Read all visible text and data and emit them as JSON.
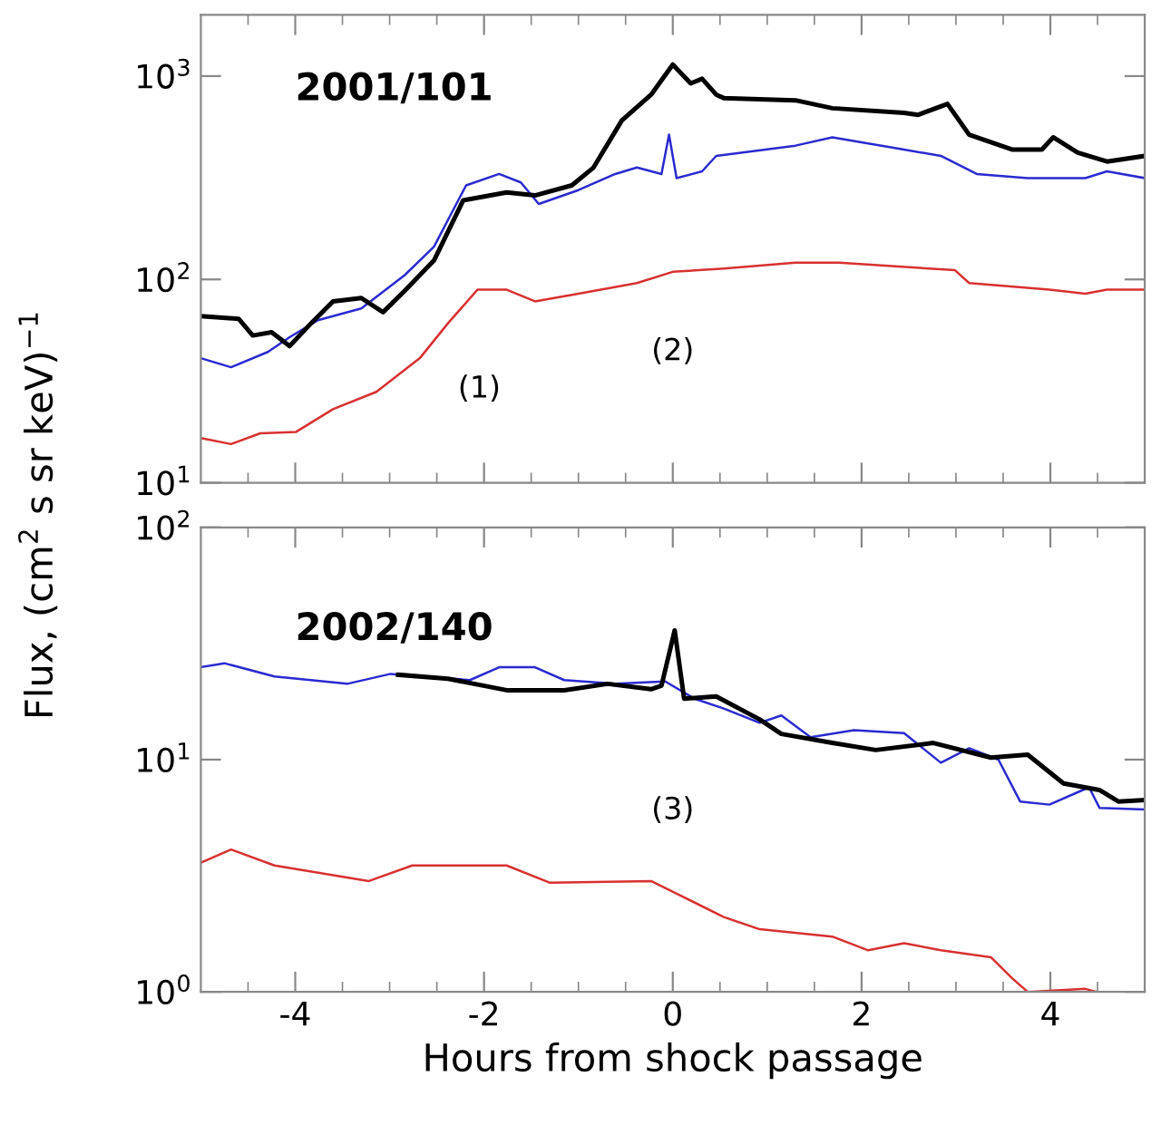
{
  "chart_data": [
    {
      "type": "line",
      "title": "2001/101",
      "ylabel": "Flux, (cm$^{2}$ s sr keV)$^{−1}$",
      "log": "y",
      "grid": false,
      "tick_labels": "y",
      "line_style": "solid",
      "marker": "none",
      "xlim": [
        -5,
        5
      ],
      "ylim": [
        10,
        2000
      ],
      "xticks": [
        -4,
        -2,
        0,
        2,
        4,
        {
          "value": -4.5,
          "label": null
        },
        {
          "value": -3.5,
          "label": null
        },
        {
          "value": -3,
          "label": null
        },
        {
          "value": -2.5,
          "label": null
        },
        {
          "value": -1.5,
          "label": null
        },
        {
          "value": -1,
          "label": null
        },
        {
          "value": -0.5,
          "label": null
        },
        {
          "value": 0.5,
          "label": null
        },
        {
          "value": 1,
          "label": null
        },
        {
          "value": 1.5,
          "label": null
        },
        {
          "value": 2.5,
          "label": null
        },
        {
          "value": 3,
          "label": null
        },
        {
          "value": 3.5,
          "label": null
        },
        {
          "value": 4.5,
          "label": null
        }
      ],
      "yticks": [
        {
          "value": 10,
          "label": "10$^{1}$"
        },
        {
          "value": 100,
          "label": "10$^{2}$"
        },
        {
          "value": 1000,
          "label": "10$^{3}$"
        }
      ],
      "annotations": [
        "(1)",
        "(2)"
      ],
      "series": [
        {
          "color": "#2a2ad0",
          "x": [
            -5,
            -4.68,
            -4.29,
            -4.06,
            -3.76,
            -3.3,
            -2.84,
            -2.53,
            -2.19,
            -1.84,
            -1.61,
            -1.42,
            -1.0,
            -0.61,
            -0.38,
            -0.12,
            -0.04,
            0.04,
            0.31,
            0.46,
            1.3,
            1.69,
            2.45,
            2.84,
            3.22,
            3.76,
            4.37,
            4.6,
            5
          ],
          "values": [
            41,
            37,
            44,
            52,
            63,
            72,
            105,
            145,
            290,
            330,
            300,
            235,
            275,
            330,
            355,
            330,
            515,
            315,
            340,
            405,
            455,
            500,
            435,
            405,
            330,
            315,
            315,
            340,
            315
          ]
        },
        {
          "color": "#d83030",
          "x": [
            -5,
            -4.68,
            -4.37,
            -3.99,
            -3.6,
            -3.14,
            -2.68,
            -2.38,
            -2.07,
            -1.76,
            -1.46,
            -1.0,
            -0.38,
            0,
            0.54,
            1.3,
            1.76,
            2.99,
            3.14,
            3.99,
            4.37,
            4.6,
            5
          ],
          "values": [
            16.6,
            15.5,
            17.5,
            17.8,
            23,
            28,
            41,
            61,
            89,
            89,
            78,
            85,
            96,
            109,
            113,
            121,
            121,
            111,
            96,
            89,
            85,
            89,
            89
          ]
        },
        {
          "color": "#000000",
          "x": [
            -5,
            -4.6,
            -4.45,
            -4.25,
            -4.06,
            -3.83,
            -3.6,
            -3.3,
            -3.07,
            -2.84,
            -2.53,
            -2.22,
            -1.76,
            -1.46,
            -1.07,
            -0.84,
            -0.54,
            -0.23,
            0,
            0.19,
            0.31,
            0.46,
            0.54,
            1.3,
            1.69,
            2.45,
            2.6,
            2.91,
            3.14,
            3.6,
            3.91,
            4.03,
            4.29,
            4.6,
            5
          ],
          "values": [
            66,
            64,
            53,
            55,
            47,
            61,
            78,
            81,
            69,
            88,
            124,
            245,
            268,
            259,
            290,
            355,
            605,
            810,
            1140,
            920,
            970,
            810,
            780,
            760,
            695,
            660,
            645,
            730,
            515,
            435,
            435,
            500,
            420,
            380,
            405
          ]
        }
      ]
    },
    {
      "type": "line",
      "title": "2002/140",
      "xlabel": "Hours from shock passage",
      "log": "y",
      "grid": false,
      "line_style": "solid",
      "marker": "none",
      "xlim": [
        -5,
        5
      ],
      "ylim": [
        1,
        100
      ],
      "xticks": [
        -4,
        -2,
        0,
        2,
        4,
        {
          "value": -4.5,
          "label": null
        },
        {
          "value": -3.5,
          "label": null
        },
        {
          "value": -3,
          "label": null
        },
        {
          "value": -2.5,
          "label": null
        },
        {
          "value": -1.5,
          "label": null
        },
        {
          "value": -1,
          "label": null
        },
        {
          "value": -0.5,
          "label": null
        },
        {
          "value": 0.5,
          "label": null
        },
        {
          "value": 1,
          "label": null
        },
        {
          "value": 1.5,
          "label": null
        },
        {
          "value": 2.5,
          "label": null
        },
        {
          "value": 3,
          "label": null
        },
        {
          "value": 3.5,
          "label": null
        },
        {
          "value": 4.5,
          "label": null
        }
      ],
      "yticks": [
        {
          "value": 1,
          "label": "10$^{0}$"
        },
        {
          "value": 10,
          "label": "10$^{1}$"
        },
        {
          "value": 100,
          "label": "10$^{2}$"
        }
      ],
      "annotations": [
        "(3)"
      ],
      "series": [
        {
          "color": "#2a2ad0",
          "x": [
            -5,
            -4.75,
            -4.22,
            -3.45,
            -2.99,
            -2.15,
            -1.84,
            -1.46,
            -1.15,
            -0.61,
            -0.08,
            0.23,
            0.54,
            0.92,
            1.15,
            1.46,
            1.92,
            2.45,
            2.84,
            3.14,
            3.45,
            3.68,
            3.99,
            4.41,
            4.52,
            5
          ],
          "values": [
            25,
            26,
            22.8,
            21.2,
            23.4,
            22,
            25,
            25,
            22,
            21.2,
            21.7,
            18.3,
            16.6,
            14.4,
            15.5,
            12.5,
            13.4,
            13,
            9.7,
            11.2,
            10,
            6.6,
            6.4,
            7.6,
            6.2,
            6.1
          ]
        },
        {
          "color": "#d83030",
          "x": [
            -5,
            -4.68,
            -4.22,
            -3.22,
            -2.76,
            -1.76,
            -1.3,
            -0.23,
            0.08,
            0.54,
            0.92,
            1.69,
            2.07,
            2.45,
            2.84,
            3.37,
            3.6,
            3.76,
            3.99,
            4.37,
            4.49
          ],
          "values": [
            3.6,
            4.1,
            3.5,
            3.0,
            3.5,
            3.5,
            2.95,
            3.0,
            2.6,
            2.1,
            1.86,
            1.73,
            1.51,
            1.62,
            1.51,
            1.41,
            1.14,
            1.0,
            1.01,
            1.03,
            1.0
          ]
        },
        {
          "color": "#000000",
          "x": [
            -2.91,
            -2.38,
            -1.76,
            -1.15,
            -0.69,
            -0.23,
            -0.12,
            0.02,
            0.12,
            0.46,
            0.92,
            1.15,
            1.69,
            2.15,
            2.76,
            3.37,
            3.76,
            4.14,
            4.52,
            4.72,
            5
          ],
          "values": [
            23.2,
            22.3,
            19.9,
            19.9,
            21.2,
            20.1,
            20.8,
            36,
            18.3,
            18.7,
            14.9,
            12.9,
            11.8,
            11.0,
            11.8,
            10.2,
            10.5,
            7.9,
            7.4,
            6.6,
            6.7
          ]
        }
      ]
    }
  ]
}
